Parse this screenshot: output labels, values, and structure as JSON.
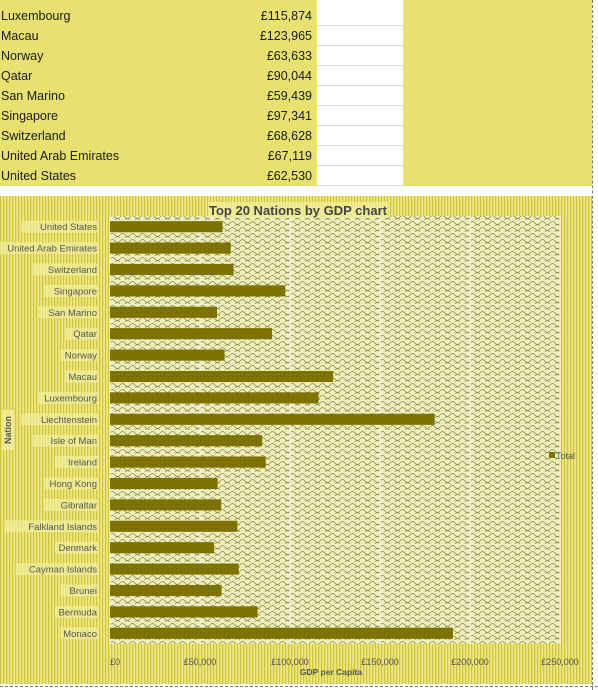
{
  "sheet": {
    "rows": [
      {
        "name": "Luxembourg",
        "value": "£115,874"
      },
      {
        "name": "Macau",
        "value": "£123,965"
      },
      {
        "name": "Norway",
        "value": "£63,633"
      },
      {
        "name": "Qatar",
        "value": "£90,044"
      },
      {
        "name": "San Marino",
        "value": "£59,439"
      },
      {
        "name": "Singapore",
        "value": "£97,341"
      },
      {
        "name": "Switzerland",
        "value": "£68,628"
      },
      {
        "name": "United Arab Emirates",
        "value": "£67,119"
      },
      {
        "name": "United States",
        "value": "£62,530"
      }
    ]
  },
  "colors": {
    "sheet_fill": "#e8e16f",
    "bar": "#7f7400",
    "plot_pattern": "#e4e28c",
    "chart_stripes": "#d8cf55"
  },
  "chart_data": {
    "type": "bar",
    "orientation": "horizontal",
    "title": "Top 20 Nations by GDP chart",
    "xlabel": "GDP per Capita",
    "ylabel": "Nation",
    "categories": [
      "United States",
      "United Arab Emirates",
      "Switzerland",
      "Singapore",
      "San Marino",
      "Qatar",
      "Norway",
      "Macau",
      "Luxembourg",
      "Liechtenstein",
      "Isle of Man",
      "Ireland",
      "Hong Kong",
      "Gibraltar",
      "Falkland Islands",
      "Denmark",
      "Cayman Islands",
      "Brunei",
      "Bermuda",
      "Monaco"
    ],
    "series": [
      {
        "name": "Total",
        "values": [
          62530,
          67119,
          68628,
          97341,
          59439,
          90044,
          63633,
          123965,
          115874,
          180367,
          84600,
          86500,
          59800,
          61800,
          70800,
          57800,
          71500,
          62000,
          82000,
          190513
        ]
      }
    ],
    "xlim": [
      0,
      250000
    ],
    "xticks": [
      0,
      50000,
      100000,
      150000,
      200000,
      250000
    ],
    "xtick_labels": [
      "£0",
      "£50,000",
      "£100,000",
      "£150,000",
      "£200,000",
      "£250,000"
    ],
    "grid": true,
    "legend": "right"
  }
}
